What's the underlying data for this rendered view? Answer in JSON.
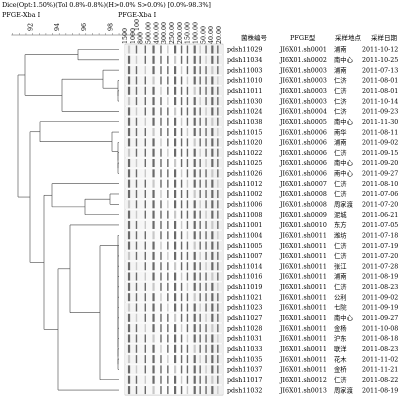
{
  "header": {
    "settings": "Dice(Opt:1.50%)(Tol 0.8%-0.8%)(H>0.0% S>0.0%) [0.0%-98.3%]",
    "left_title": "PFGE-Xba I",
    "gel_title": "PFGE-Xba I"
  },
  "similarity_scale": [
    "92",
    "94",
    "96",
    "98",
    "100"
  ],
  "size_markers": [
    "1500",
    "1000",
    "800",
    "500.00",
    "400.00",
    "300.00",
    "250.00",
    "200.00",
    "150.00",
    "100.00",
    "50.00",
    "40.00",
    "20.00"
  ],
  "columns": {
    "strain": "菌株编号",
    "pfge": "PFGE型",
    "site": "采样地点",
    "date": "采样日期"
  },
  "rows": [
    {
      "strain": "pdsh11029",
      "pfge": "JI6X01.sh0001",
      "site": "浦南",
      "date": "2011-10-12"
    },
    {
      "strain": "pdsh11034",
      "pfge": "JI6X01.sh0002",
      "site": "南中心",
      "date": "2011-10-25"
    },
    {
      "strain": "pdsh11003",
      "pfge": "JI6X01.sh0003",
      "site": "浦南",
      "date": "2011-07-13"
    },
    {
      "strain": "pdsh11010",
      "pfge": "JI6X01.sh0003",
      "site": "仁济",
      "date": "2011-08-01"
    },
    {
      "strain": "pdsh11011",
      "pfge": "JI6X01.sh0003",
      "site": "仁济",
      "date": "2011-08-01"
    },
    {
      "strain": "pdsh11030",
      "pfge": "JI6X01.sh0003",
      "site": "仁济",
      "date": "2011-10-14"
    },
    {
      "strain": "pdsh11024",
      "pfge": "JI6X01.sh0004",
      "site": "仁济",
      "date": "2011-09-23"
    },
    {
      "strain": "pdsh11038",
      "pfge": "JI6X01.sh0005",
      "site": "南中心",
      "date": "2011-11-30"
    },
    {
      "strain": "pdsh11015",
      "pfge": "JI6X01.sh0006",
      "site": "南华",
      "date": "2011-08-11"
    },
    {
      "strain": "pdsh11020",
      "pfge": "JI6X01.sh0006",
      "site": "浦南",
      "date": "2011-09-02"
    },
    {
      "strain": "pdsh11022",
      "pfge": "JI6X01.sh0006",
      "site": "仁济",
      "date": "2011-09-15"
    },
    {
      "strain": "pdsh11025",
      "pfge": "JI6X01.sh0006",
      "site": "南中心",
      "date": "2011-09-20"
    },
    {
      "strain": "pdsh11026",
      "pfge": "JI6X01.sh0006",
      "site": "南中心",
      "date": "2011-09-27"
    },
    {
      "strain": "pdsh11012",
      "pfge": "JI6X01.sh0007",
      "site": "仁济",
      "date": "2011-08-10"
    },
    {
      "strain": "pdsh11002",
      "pfge": "JI6X01.sh0008",
      "site": "仁济",
      "date": "2011-07-06"
    },
    {
      "strain": "pdsh11006",
      "pfge": "JI6X01.sh0008",
      "site": "周家渡",
      "date": "2011-07-20"
    },
    {
      "strain": "pdsh11008",
      "pfge": "JI6X01.sh0009",
      "site": "泥城",
      "date": "2011-06-21"
    },
    {
      "strain": "pdsh11001",
      "pfge": "JI6X01.sh0010",
      "site": "东方",
      "date": "2011-07-05"
    },
    {
      "strain": "pdsh11004",
      "pfge": "JI6X01.sh0011",
      "site": "潍坊",
      "date": "2011-07-18"
    },
    {
      "strain": "pdsh11005",
      "pfge": "JI6X01.sh0011",
      "site": "仁济",
      "date": "2011-07-19"
    },
    {
      "strain": "pdsh11007",
      "pfge": "JI6X01.sh0011",
      "site": "仁济",
      "date": "2011-07-20"
    },
    {
      "strain": "pdsh11014",
      "pfge": "JI6X01.sh0011",
      "site": "张江",
      "date": "2011-07-28"
    },
    {
      "strain": "pdsh11016",
      "pfge": "JI6X01.sh0011",
      "site": "浦南",
      "date": "2011-08-19"
    },
    {
      "strain": "pdsh11019",
      "pfge": "JI6X01.sh0011",
      "site": "仁济",
      "date": "2011-08-23"
    },
    {
      "strain": "pdsh11021",
      "pfge": "JI6X01.sh0011",
      "site": "公利",
      "date": "2011-09-02"
    },
    {
      "strain": "pdsh11023",
      "pfge": "JI6X01.sh0011",
      "site": "七院",
      "date": "2011-09-19"
    },
    {
      "strain": "pdsh11027",
      "pfge": "JI6X01.sh0011",
      "site": "南中心",
      "date": "2011-09-27"
    },
    {
      "strain": "pdsh11028",
      "pfge": "JI6X01.sh0011",
      "site": "金杨",
      "date": "2011-10-08"
    },
    {
      "strain": "pdsh11031",
      "pfge": "JI6X01.sh0011",
      "site": "沪东",
      "date": "2011-08-18"
    },
    {
      "strain": "pdsh11033",
      "pfge": "JI6X01.sh0011",
      "site": "联洋",
      "date": "2011-08-23"
    },
    {
      "strain": "pdsh11035",
      "pfge": "JI6X01.sh0011",
      "site": "花木",
      "date": "2011-11-02"
    },
    {
      "strain": "pdsh11037",
      "pfge": "JI6X01.sh0011",
      "site": "金桥",
      "date": "2011-11-21"
    },
    {
      "strain": "pdsh11017",
      "pfge": "JI6X01.sh0012",
      "site": "仁济",
      "date": "2011-08-22"
    },
    {
      "strain": "pdsh11032",
      "pfge": "JI6X01.sh0013",
      "site": "周家渡",
      "date": "2011-08-19"
    }
  ]
}
